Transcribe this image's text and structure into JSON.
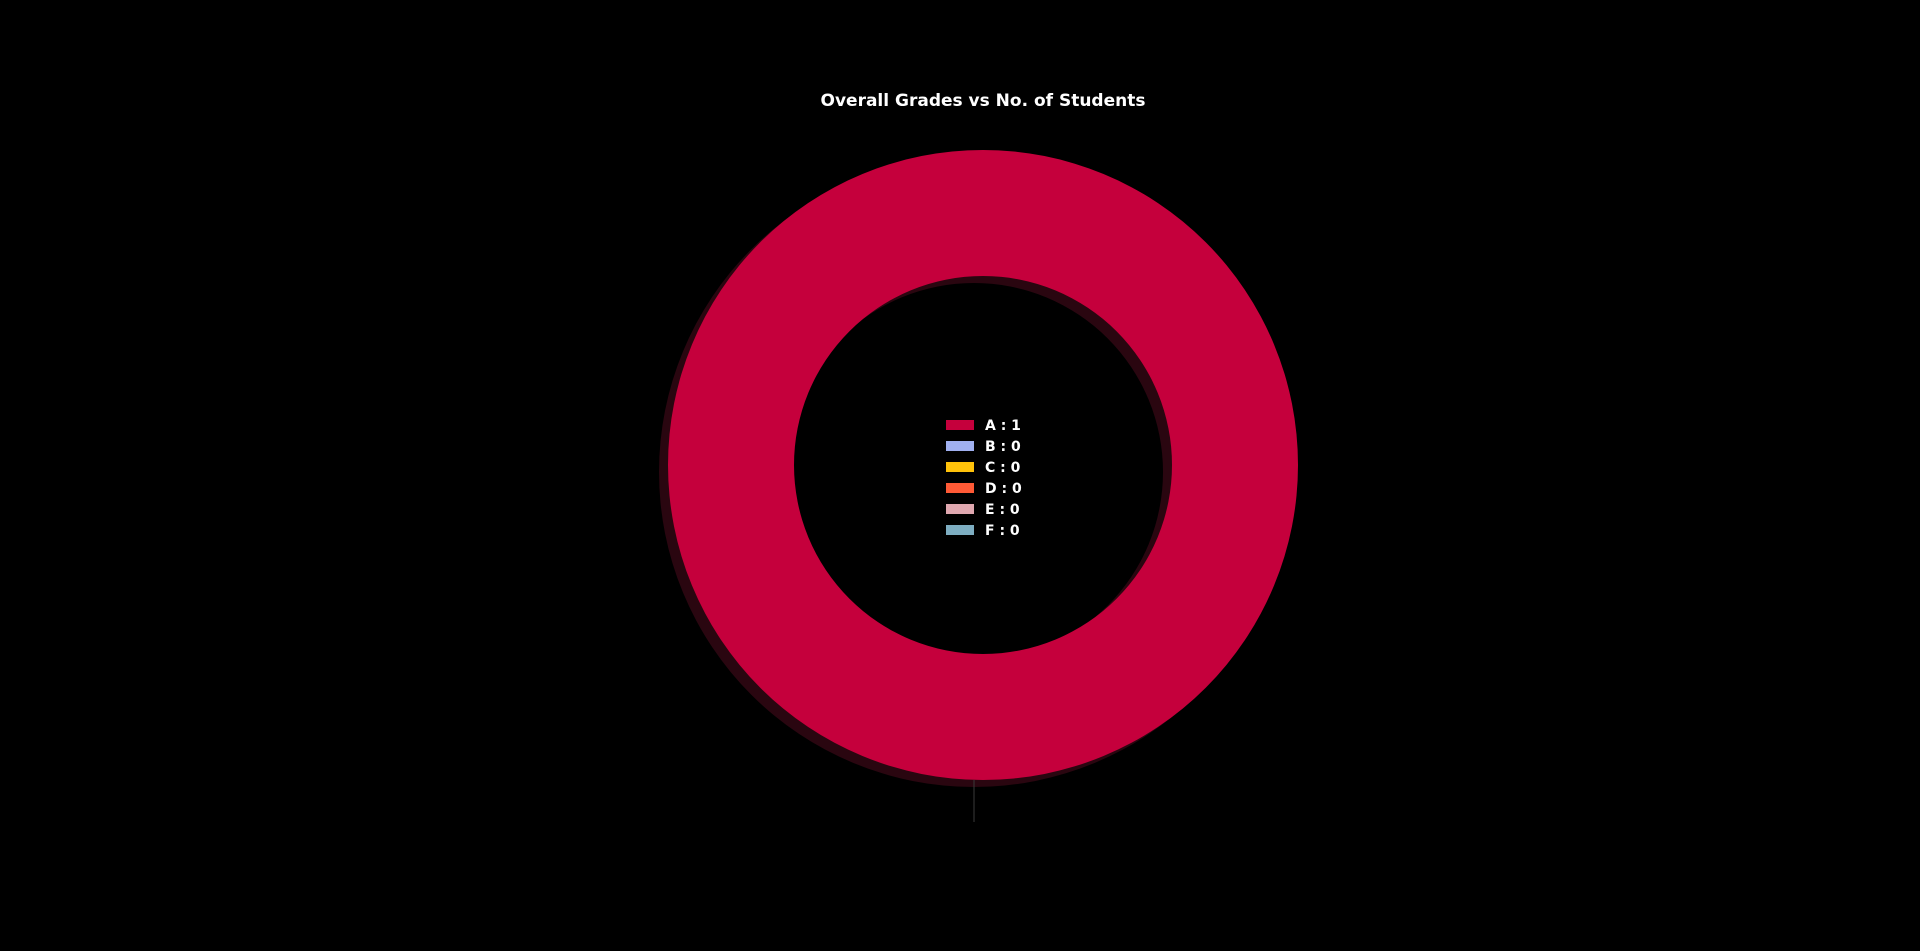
{
  "chart_data": {
    "type": "pie",
    "title": "Overall Grades vs No. of Students",
    "donut": true,
    "shadow": true,
    "legend_position": "center",
    "categories": [
      "A",
      "B",
      "C",
      "D",
      "E",
      "F"
    ],
    "values": [
      1,
      0,
      0,
      0,
      0,
      0
    ],
    "colors": [
      "#c5003c",
      "#a0b0f0",
      "#ffc20a",
      "#ff5a36",
      "#e0a8b0",
      "#7eaec2"
    ],
    "legend": [
      {
        "label": "A : 1",
        "color": "#c5003c"
      },
      {
        "label": "B : 0",
        "color": "#a0b0f0"
      },
      {
        "label": "C : 0",
        "color": "#ffc20a"
      },
      {
        "label": "D : 0",
        "color": "#ff5a36"
      },
      {
        "label": "E : 0",
        "color": "#e0a8b0"
      },
      {
        "label": "F : 0",
        "color": "#7eaec2"
      }
    ]
  }
}
